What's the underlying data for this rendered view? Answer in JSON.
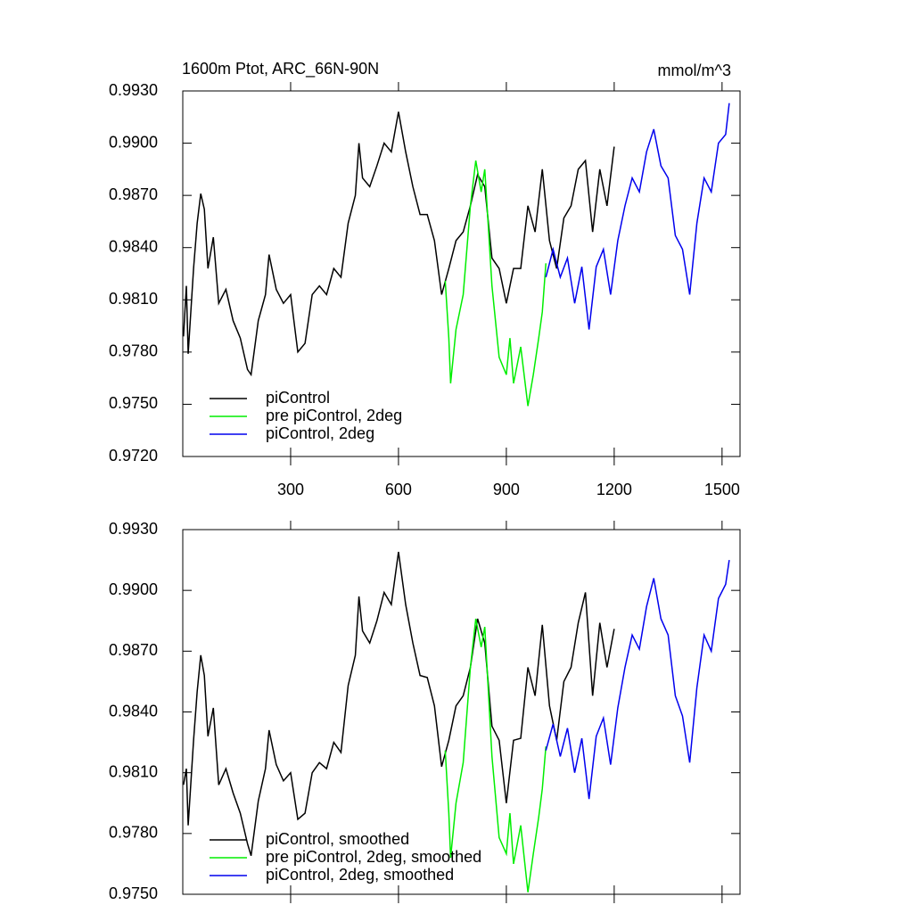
{
  "chart_data": [
    {
      "type": "line",
      "title": "1600m Ptot, ARC_66N-90N",
      "units": "mmol/m^3",
      "xlim": [
        0,
        1550
      ],
      "xticks": [
        300,
        600,
        900,
        1200,
        1500
      ],
      "ylim": [
        0.972,
        0.993
      ],
      "yticks": [
        {
          "value": 0.972,
          "label": "0.9720"
        },
        {
          "value": 0.975,
          "label": "0.9750"
        },
        {
          "value": 0.978,
          "label": "0.9780"
        },
        {
          "value": 0.981,
          "label": "0.9810"
        },
        {
          "value": 0.984,
          "label": "0.9840"
        },
        {
          "value": 0.987,
          "label": "0.9870"
        },
        {
          "value": 0.99,
          "label": "0.9900"
        },
        {
          "value": 0.993,
          "label": "0.9930"
        }
      ],
      "series": [
        {
          "name": "piControl",
          "color": "#000000",
          "x": [
            2,
            10,
            15,
            30,
            40,
            50,
            60,
            70,
            85,
            100,
            120,
            140,
            160,
            180,
            190,
            210,
            230,
            240,
            260,
            280,
            300,
            320,
            340,
            360,
            380,
            400,
            420,
            440,
            460,
            480,
            490,
            500,
            520,
            540,
            560,
            580,
            600,
            620,
            640,
            660,
            680,
            700,
            720,
            740,
            760,
            780,
            800,
            820,
            840,
            860,
            880,
            900,
            920,
            940,
            960,
            980,
            1000,
            1020,
            1040,
            1060,
            1080,
            1100,
            1120,
            1140,
            1160,
            1180,
            1200
          ],
          "values": [
            0.9789,
            0.9818,
            0.9779,
            0.9828,
            0.9854,
            0.9871,
            0.9862,
            0.9828,
            0.9846,
            0.9808,
            0.9816,
            0.9798,
            0.9788,
            0.977,
            0.9767,
            0.9798,
            0.9813,
            0.9836,
            0.9816,
            0.9808,
            0.9813,
            0.978,
            0.9785,
            0.9813,
            0.9818,
            0.9813,
            0.9828,
            0.9823,
            0.9854,
            0.987,
            0.99,
            0.988,
            0.9875,
            0.9887,
            0.99,
            0.9895,
            0.9918,
            0.9895,
            0.9875,
            0.9859,
            0.9859,
            0.9844,
            0.9813,
            0.9828,
            0.9844,
            0.9849,
            0.9864,
            0.9882,
            0.9875,
            0.9834,
            0.9828,
            0.9808,
            0.9828,
            0.9828,
            0.9864,
            0.9849,
            0.9885,
            0.9844,
            0.9828,
            0.9857,
            0.9864,
            0.9885,
            0.989,
            0.9849,
            0.9885,
            0.9864,
            0.9898
          ]
        },
        {
          "name": "pre piControl, 2deg",
          "color": "#00ee00",
          "x": [
            730,
            740,
            745,
            760,
            780,
            800,
            815,
            830,
            840,
            860,
            880,
            900,
            910,
            920,
            940,
            960,
            975,
            990,
            1000,
            1010
          ],
          "values": [
            0.9821,
            0.9788,
            0.9762,
            0.9793,
            0.9813,
            0.9864,
            0.989,
            0.9872,
            0.9885,
            0.9818,
            0.9777,
            0.9767,
            0.9788,
            0.9762,
            0.9783,
            0.9749,
            0.9767,
            0.9788,
            0.9803,
            0.9831
          ]
        },
        {
          "name": "piControl, 2deg",
          "color": "#0000ee",
          "x": [
            1010,
            1030,
            1050,
            1070,
            1090,
            1110,
            1130,
            1150,
            1170,
            1190,
            1210,
            1230,
            1250,
            1270,
            1290,
            1310,
            1330,
            1350,
            1370,
            1390,
            1410,
            1430,
            1450,
            1470,
            1490,
            1510,
            1520
          ],
          "values": [
            0.9823,
            0.9839,
            0.9823,
            0.9834,
            0.9808,
            0.9829,
            0.9793,
            0.9829,
            0.9839,
            0.9813,
            0.9844,
            0.9864,
            0.988,
            0.9872,
            0.9895,
            0.9908,
            0.9887,
            0.988,
            0.9847,
            0.9839,
            0.9813,
            0.9854,
            0.988,
            0.9872,
            0.99,
            0.9905,
            0.9923
          ]
        }
      ]
    },
    {
      "type": "line",
      "xlim": [
        0,
        1550
      ],
      "ylim": [
        0.975,
        0.993
      ],
      "yticks": [
        {
          "value": 0.975,
          "label": "0.9750"
        },
        {
          "value": 0.978,
          "label": "0.9780"
        },
        {
          "value": 0.981,
          "label": "0.9810"
        },
        {
          "value": 0.984,
          "label": "0.9840"
        },
        {
          "value": 0.987,
          "label": "0.9870"
        },
        {
          "value": 0.99,
          "label": "0.9900"
        },
        {
          "value": 0.993,
          "label": "0.9930"
        }
      ],
      "series": [
        {
          "name": "piControl, smoothed",
          "color": "#000000",
          "x": [
            2,
            10,
            15,
            30,
            40,
            50,
            60,
            70,
            85,
            100,
            120,
            140,
            160,
            180,
            190,
            210,
            230,
            240,
            260,
            280,
            300,
            320,
            340,
            360,
            380,
            400,
            420,
            440,
            460,
            480,
            490,
            500,
            520,
            540,
            560,
            580,
            600,
            620,
            640,
            660,
            680,
            700,
            720,
            740,
            760,
            780,
            800,
            820,
            840,
            860,
            880,
            900,
            920,
            940,
            960,
            980,
            1000,
            1020,
            1040,
            1060,
            1080,
            1100,
            1120,
            1140,
            1160,
            1180,
            1200
          ],
          "values": [
            0.9804,
            0.9812,
            0.9784,
            0.9826,
            0.985,
            0.9868,
            0.9858,
            0.9828,
            0.9842,
            0.9804,
            0.9812,
            0.98,
            0.979,
            0.9775,
            0.9769,
            0.9796,
            0.9812,
            0.9831,
            0.9814,
            0.9806,
            0.981,
            0.9787,
            0.979,
            0.981,
            0.9815,
            0.9812,
            0.9825,
            0.982,
            0.9853,
            0.9868,
            0.9897,
            0.988,
            0.9874,
            0.9885,
            0.9899,
            0.9893,
            0.9919,
            0.9893,
            0.9874,
            0.9858,
            0.9857,
            0.9843,
            0.9813,
            0.9826,
            0.9843,
            0.9848,
            0.9862,
            0.9886,
            0.9874,
            0.9833,
            0.9826,
            0.9795,
            0.9826,
            0.9827,
            0.9862,
            0.9848,
            0.9883,
            0.9843,
            0.9826,
            0.9855,
            0.9862,
            0.9884,
            0.9899,
            0.9848,
            0.9884,
            0.9862,
            0.9881
          ]
        },
        {
          "name": "pre piControl, 2deg, smoothed",
          "color": "#00ee00",
          "x": [
            730,
            740,
            745,
            760,
            780,
            800,
            815,
            830,
            840,
            860,
            880,
            900,
            910,
            920,
            940,
            960,
            975,
            990,
            1000,
            1010
          ],
          "values": [
            0.9821,
            0.979,
            0.9768,
            0.9795,
            0.9815,
            0.9862,
            0.9886,
            0.9872,
            0.9882,
            0.9818,
            0.9778,
            0.977,
            0.979,
            0.9765,
            0.9784,
            0.9751,
            0.977,
            0.9788,
            0.9802,
            0.9823
          ]
        },
        {
          "name": "piControl, 2deg, smoothed",
          "color": "#0000ee",
          "x": [
            1010,
            1030,
            1050,
            1070,
            1090,
            1110,
            1130,
            1150,
            1170,
            1190,
            1210,
            1230,
            1250,
            1270,
            1290,
            1310,
            1330,
            1350,
            1370,
            1390,
            1410,
            1430,
            1450,
            1470,
            1490,
            1510,
            1520
          ],
          "values": [
            0.9821,
            0.9834,
            0.9818,
            0.9832,
            0.981,
            0.9827,
            0.9797,
            0.9828,
            0.9837,
            0.9814,
            0.9842,
            0.9862,
            0.9878,
            0.9871,
            0.9892,
            0.9906,
            0.9886,
            0.9878,
            0.9848,
            0.9838,
            0.9815,
            0.9852,
            0.9878,
            0.987,
            0.9896,
            0.9903,
            0.9915
          ]
        }
      ]
    }
  ]
}
